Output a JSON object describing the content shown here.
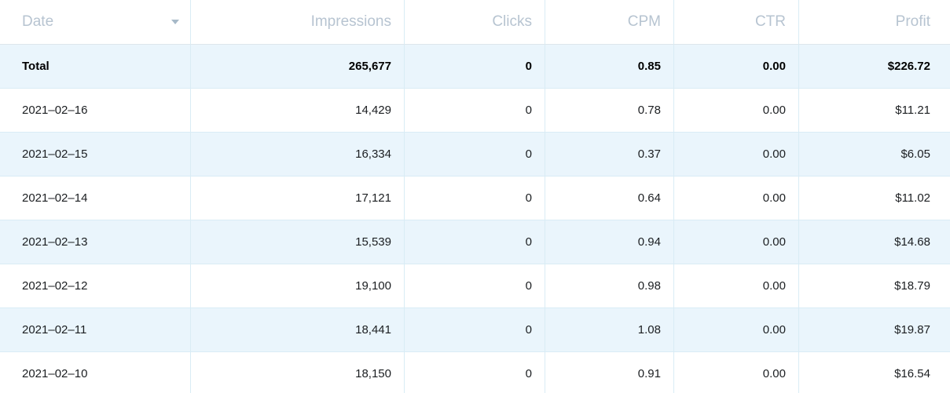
{
  "table": {
    "columns": [
      {
        "key": "date",
        "label": "Date",
        "align": "left",
        "sortable": true
      },
      {
        "key": "impressions",
        "label": "Impressions",
        "align": "right"
      },
      {
        "key": "clicks",
        "label": "Clicks",
        "align": "right"
      },
      {
        "key": "cpm",
        "label": "CPM",
        "align": "right"
      },
      {
        "key": "ctr",
        "label": "CTR",
        "align": "right"
      },
      {
        "key": "profit",
        "label": "Profit",
        "align": "right"
      }
    ],
    "total_row": {
      "date": "Total",
      "impressions": "265,677",
      "clicks": "0",
      "cpm": "0.85",
      "ctr": "0.00",
      "profit": "$226.72"
    },
    "rows": [
      {
        "date": "2021–02–16",
        "impressions": "14,429",
        "clicks": "0",
        "cpm": "0.78",
        "ctr": "0.00",
        "profit": "$11.21"
      },
      {
        "date": "2021–02–15",
        "impressions": "16,334",
        "clicks": "0",
        "cpm": "0.37",
        "ctr": "0.00",
        "profit": "$6.05"
      },
      {
        "date": "2021–02–14",
        "impressions": "17,121",
        "clicks": "0",
        "cpm": "0.64",
        "ctr": "0.00",
        "profit": "$11.02"
      },
      {
        "date": "2021–02–13",
        "impressions": "15,539",
        "clicks": "0",
        "cpm": "0.94",
        "ctr": "0.00",
        "profit": "$14.68"
      },
      {
        "date": "2021–02–12",
        "impressions": "19,100",
        "clicks": "0",
        "cpm": "0.98",
        "ctr": "0.00",
        "profit": "$18.79"
      },
      {
        "date": "2021–02–11",
        "impressions": "18,441",
        "clicks": "0",
        "cpm": "1.08",
        "ctr": "0.00",
        "profit": "$19.87"
      },
      {
        "date": "2021–02–10",
        "impressions": "18,150",
        "clicks": "0",
        "cpm": "0.91",
        "ctr": "0.00",
        "profit": "$16.54"
      }
    ],
    "icons": {
      "date_sort": "sort-dropdown-triangle-down"
    },
    "colors": {
      "header_text": "#b7c4d1",
      "zebra_row_bg": "#eaf5fc",
      "column_divider": "#d9ecf5",
      "header_border": "#dee6eb",
      "data_text": "#1b1e21",
      "sort_arrow": "#a7b9c8"
    }
  }
}
